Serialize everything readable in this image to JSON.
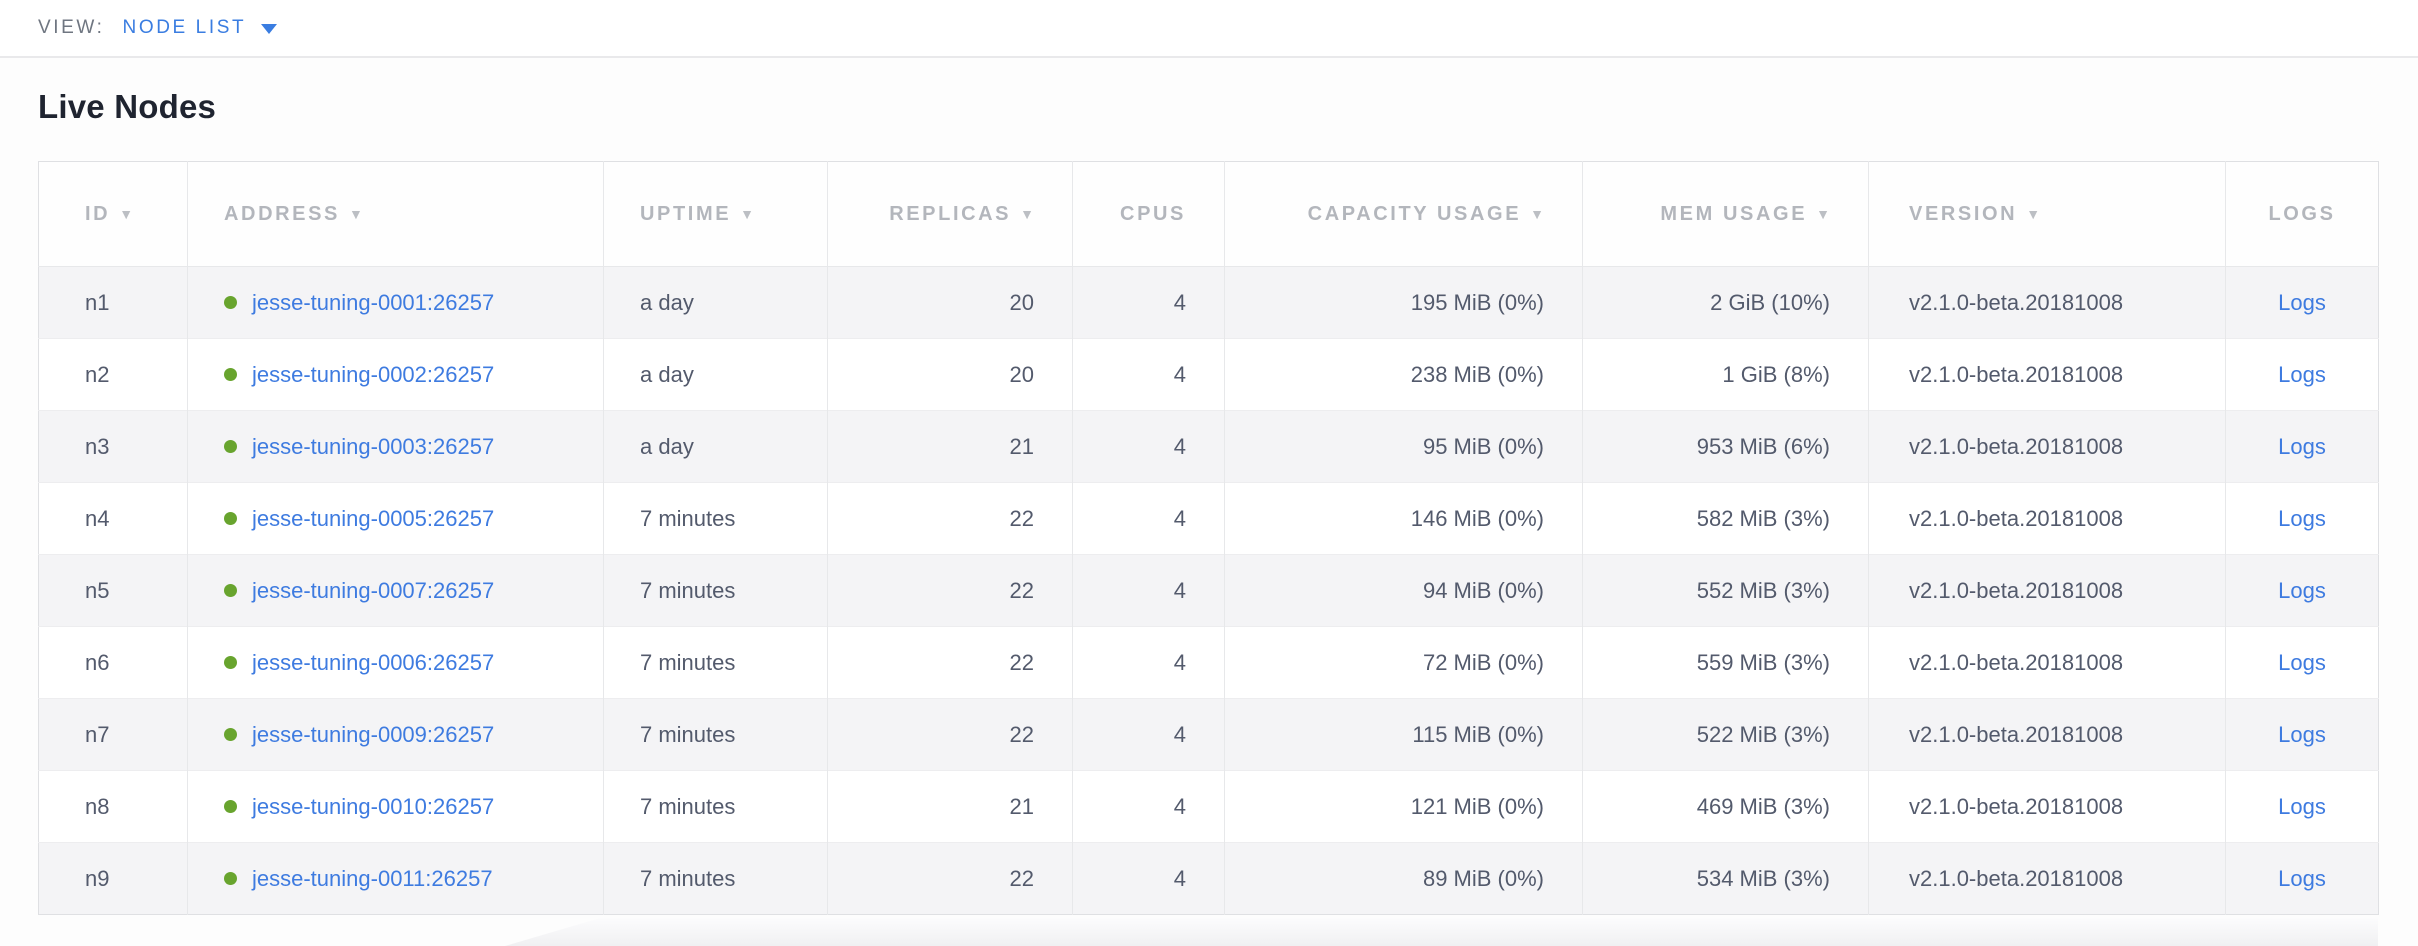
{
  "view_bar": {
    "label": "VIEW:",
    "selected": "NODE LIST"
  },
  "page": {
    "title": "Live Nodes"
  },
  "icons": {
    "sort_desc": "▼",
    "caret_down": "▼",
    "status_dot": "●"
  },
  "colors": {
    "accent_blue": "#3a7de1",
    "link_blue": "#3e7be0",
    "status_green": "#68a42e",
    "header_gray": "#b3b6bc",
    "body_text": "#535a6c",
    "row_alt_bg": "#f4f4f6",
    "border": "#e7e8ea"
  },
  "table": {
    "columns": [
      {
        "key": "id",
        "label": "ID",
        "sortable": true
      },
      {
        "key": "address",
        "label": "ADDRESS",
        "sortable": true
      },
      {
        "key": "uptime",
        "label": "UPTIME",
        "sortable": true
      },
      {
        "key": "replicas",
        "label": "REPLICAS",
        "sortable": true
      },
      {
        "key": "cpus",
        "label": "CPUS",
        "sortable": false
      },
      {
        "key": "capacity",
        "label": "CAPACITY USAGE",
        "sortable": true
      },
      {
        "key": "mem",
        "label": "MEM USAGE",
        "sortable": true
      },
      {
        "key": "version",
        "label": "VERSION",
        "sortable": true
      },
      {
        "key": "logs",
        "label": "LOGS",
        "sortable": false
      }
    ],
    "rows": [
      {
        "id": "n1",
        "address": "jesse-tuning-0001:26257",
        "uptime": "a day",
        "replicas": "20",
        "cpus": "4",
        "capacity": "195 MiB (0%)",
        "mem": "2 GiB (10%)",
        "version": "v2.1.0-beta.20181008",
        "logs": "Logs"
      },
      {
        "id": "n2",
        "address": "jesse-tuning-0002:26257",
        "uptime": "a day",
        "replicas": "20",
        "cpus": "4",
        "capacity": "238 MiB (0%)",
        "mem": "1 GiB (8%)",
        "version": "v2.1.0-beta.20181008",
        "logs": "Logs"
      },
      {
        "id": "n3",
        "address": "jesse-tuning-0003:26257",
        "uptime": "a day",
        "replicas": "21",
        "cpus": "4",
        "capacity": "95 MiB (0%)",
        "mem": "953 MiB (6%)",
        "version": "v2.1.0-beta.20181008",
        "logs": "Logs"
      },
      {
        "id": "n4",
        "address": "jesse-tuning-0005:26257",
        "uptime": "7 minutes",
        "replicas": "22",
        "cpus": "4",
        "capacity": "146 MiB (0%)",
        "mem": "582 MiB (3%)",
        "version": "v2.1.0-beta.20181008",
        "logs": "Logs"
      },
      {
        "id": "n5",
        "address": "jesse-tuning-0007:26257",
        "uptime": "7 minutes",
        "replicas": "22",
        "cpus": "4",
        "capacity": "94 MiB (0%)",
        "mem": "552 MiB (3%)",
        "version": "v2.1.0-beta.20181008",
        "logs": "Logs"
      },
      {
        "id": "n6",
        "address": "jesse-tuning-0006:26257",
        "uptime": "7 minutes",
        "replicas": "22",
        "cpus": "4",
        "capacity": "72 MiB (0%)",
        "mem": "559 MiB (3%)",
        "version": "v2.1.0-beta.20181008",
        "logs": "Logs"
      },
      {
        "id": "n7",
        "address": "jesse-tuning-0009:26257",
        "uptime": "7 minutes",
        "replicas": "22",
        "cpus": "4",
        "capacity": "115 MiB (0%)",
        "mem": "522 MiB (3%)",
        "version": "v2.1.0-beta.20181008",
        "logs": "Logs"
      },
      {
        "id": "n8",
        "address": "jesse-tuning-0010:26257",
        "uptime": "7 minutes",
        "replicas": "21",
        "cpus": "4",
        "capacity": "121 MiB (0%)",
        "mem": "469 MiB (3%)",
        "version": "v2.1.0-beta.20181008",
        "logs": "Logs"
      },
      {
        "id": "n9",
        "address": "jesse-tuning-0011:26257",
        "uptime": "7 minutes",
        "replicas": "22",
        "cpus": "4",
        "capacity": "89 MiB (0%)",
        "mem": "534 MiB (3%)",
        "version": "v2.1.0-beta.20181008",
        "logs": "Logs"
      }
    ]
  }
}
